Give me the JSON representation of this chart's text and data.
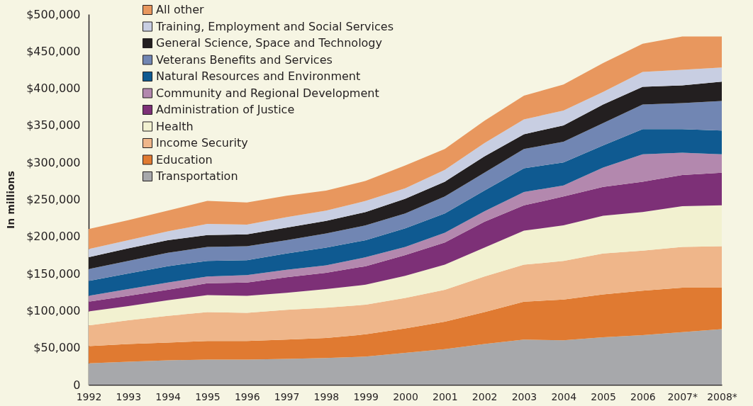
{
  "chart_data": {
    "type": "area",
    "stacked": true,
    "ylabel": "In millions",
    "categories": [
      "1992",
      "1993",
      "1994",
      "1995",
      "1996",
      "1997",
      "1998",
      "1999",
      "2000",
      "2001",
      "2002",
      "2003",
      "2004",
      "2005",
      "2006",
      "2007*",
      "2008*"
    ],
    "ylim": [
      0,
      500000
    ],
    "yticks": [
      0,
      {
        "value": 50000,
        "label": "$50,000"
      },
      {
        "value": 100000,
        "label": "$100,000"
      },
      {
        "value": 150000,
        "label": "$150,000"
      },
      {
        "value": 200000,
        "label": "$200,000"
      },
      {
        "value": 250000,
        "label": "$250,000"
      },
      {
        "value": 300000,
        "label": "$300,000"
      },
      {
        "value": 350000,
        "label": "$350,000"
      },
      {
        "value": 400000,
        "label": "$400,000"
      },
      {
        "value": 450000,
        "label": "$450,000"
      },
      {
        "value": 500000,
        "label": "$500,000"
      }
    ],
    "grid": false,
    "legend": "top left",
    "series": [
      {
        "name": "Transportation",
        "color": "#a7a8ab",
        "values": [
          29000,
          31000,
          33000,
          34000,
          34000,
          35000,
          36000,
          38000,
          43000,
          48000,
          55000,
          61000,
          60000,
          64000,
          67000,
          71000,
          75000
        ]
      },
      {
        "name": "Education",
        "color": "#e07a31",
        "values": [
          23000,
          24000,
          24000,
          25000,
          25000,
          26000,
          27000,
          30000,
          33000,
          37000,
          43000,
          51000,
          55000,
          58000,
          60000,
          60000,
          56000
        ]
      },
      {
        "name": "Income Security",
        "color": "#efb68a",
        "values": [
          28000,
          32000,
          36000,
          39000,
          38000,
          40000,
          41000,
          40000,
          41000,
          43000,
          48000,
          50000,
          52000,
          55000,
          54000,
          55000,
          56000
        ]
      },
      {
        "name": "Health",
        "color": "#f2f1d0",
        "values": [
          19000,
          19000,
          21000,
          23000,
          23000,
          23000,
          25000,
          27000,
          30000,
          34000,
          39000,
          46000,
          48000,
          51000,
          52000,
          55000,
          55000
        ]
      },
      {
        "name": "Administration of Justice",
        "color": "#7d3077",
        "values": [
          13000,
          14000,
          14000,
          16000,
          18000,
          21000,
          22000,
          25000,
          28000,
          30000,
          35000,
          34000,
          39000,
          39000,
          41000,
          42000,
          44000
        ]
      },
      {
        "name": "Community and Regional Development",
        "color": "#b388ae",
        "values": [
          8000,
          9000,
          10000,
          9000,
          10000,
          10000,
          10000,
          12000,
          11000,
          13000,
          14000,
          18000,
          15000,
          26000,
          37000,
          30000,
          25000
        ]
      },
      {
        "name": "Natural Resources and Environment",
        "color": "#0f5a91",
        "values": [
          20000,
          21000,
          22000,
          21000,
          20000,
          22000,
          24000,
          23000,
          25000,
          26000,
          28000,
          32000,
          31000,
          30000,
          34000,
          32000,
          32000
        ]
      },
      {
        "name": "Veterans Benefits and Services",
        "color": "#7186b3",
        "values": [
          16000,
          17000,
          18000,
          19000,
          19000,
          18000,
          19000,
          20000,
          20000,
          23000,
          24000,
          26000,
          28000,
          30000,
          33000,
          35000,
          40000
        ]
      },
      {
        "name": "General Science, Space and Technology",
        "color": "#231f20",
        "values": [
          16000,
          17000,
          17000,
          16000,
          16000,
          17000,
          17000,
          18000,
          20000,
          20000,
          22000,
          20000,
          22000,
          25000,
          24000,
          24000,
          26000
        ]
      },
      {
        "name": "Training, Employment and Social Services",
        "color": "#c8cee2",
        "values": [
          11000,
          11000,
          12000,
          15000,
          13000,
          14000,
          14000,
          15000,
          14000,
          16000,
          18000,
          20000,
          20000,
          17000,
          20000,
          21000,
          19000
        ]
      },
      {
        "name": "All other",
        "color": "#e8975e",
        "values": [
          27000,
          27000,
          28000,
          31000,
          30000,
          29000,
          27000,
          27000,
          31000,
          28000,
          30000,
          32000,
          35000,
          39000,
          38000,
          45000,
          42000
        ]
      }
    ]
  }
}
